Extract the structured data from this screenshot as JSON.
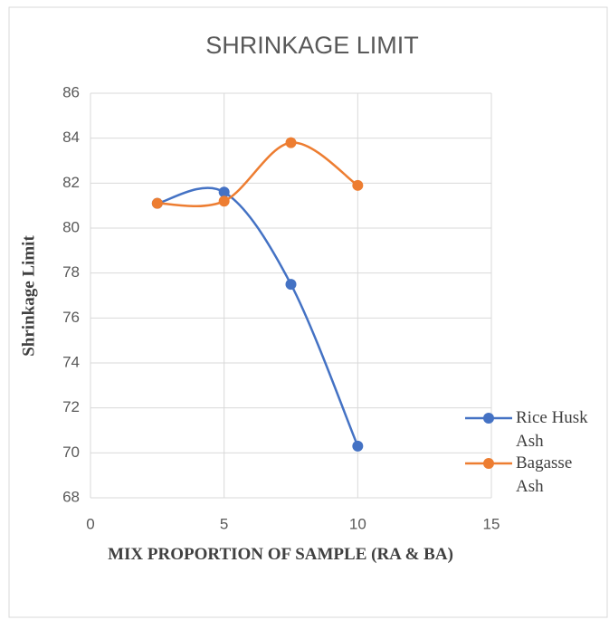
{
  "chart_data": {
    "type": "scatter",
    "title": "SHRINKAGE LIMIT",
    "x_label": "MIX PROPORTION OF SAMPLE (RA & BA)",
    "y_label": "Shrinkage Limit",
    "x": [
      2.5,
      5,
      7.5,
      10
    ],
    "series": [
      {
        "name": "Rice Husk Ash",
        "color": "#4472c4",
        "values": [
          81.1,
          81.6,
          77.5,
          70.3
        ]
      },
      {
        "name": "Bagasse Ash",
        "color": "#ed7d31",
        "values": [
          81.1,
          81.2,
          83.8,
          81.9
        ]
      }
    ],
    "xlim": [
      0,
      15
    ],
    "xticks": [
      0,
      5,
      10,
      15
    ],
    "ylim": [
      68,
      86
    ],
    "yticks": [
      68,
      70,
      72,
      74,
      76,
      78,
      80,
      82,
      84,
      86
    ],
    "grid": true,
    "smooth": true,
    "legend": "right"
  }
}
